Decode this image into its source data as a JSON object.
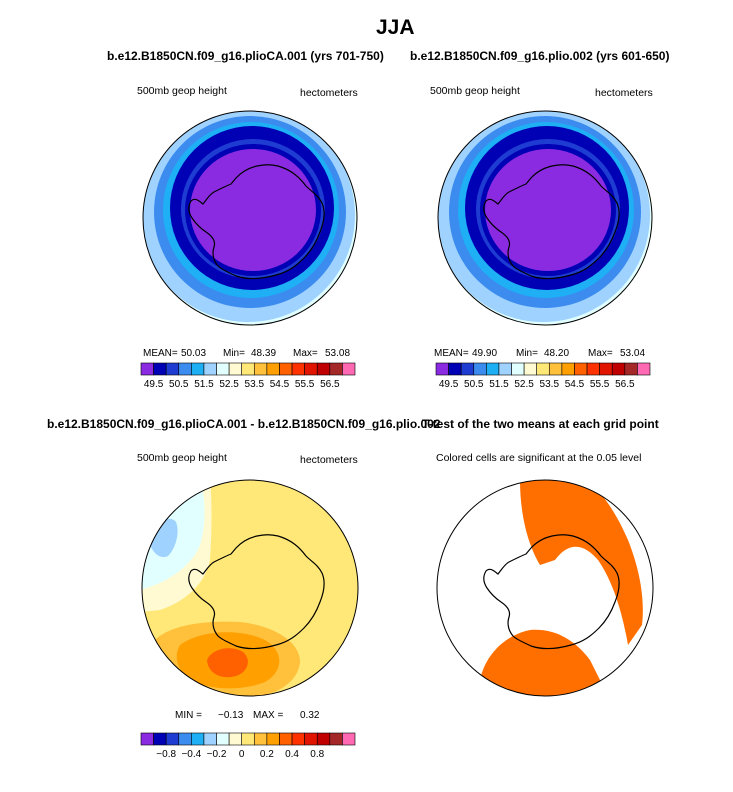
{
  "title": "JJA",
  "panels": {
    "top_left": {
      "title": "b.e12.B1850CN.f09_g16.plioCA.001 (yrs 701-750)",
      "left_label": "500mb geop height",
      "right_label": "hectometers",
      "stats": {
        "mean_label": "MEAN=",
        "mean": "50.03",
        "min_label": "Min=",
        "min": "48.39",
        "max_label": "Max=",
        "max": "53.08"
      },
      "colorbar_labels": [
        "49.5",
        "50.5",
        "51.5",
        "52.5",
        "53.5",
        "54.5",
        "55.5",
        "56.5"
      ]
    },
    "top_right": {
      "title": "b.e12.B1850CN.f09_g16.plio.002 (yrs 601-650)",
      "left_label": "500mb geop height",
      "right_label": "hectometers",
      "stats": {
        "mean_label": "MEAN=",
        "mean": "49.90",
        "min_label": "Min=",
        "min": "48.20",
        "max_label": "Max=",
        "max": "53.04"
      },
      "colorbar_labels": [
        "49.5",
        "50.5",
        "51.5",
        "52.5",
        "53.5",
        "54.5",
        "55.5",
        "56.5"
      ]
    },
    "bottom_left": {
      "title": "b.e12.B1850CN.f09_g16.plioCA.001 - b.e12.B1850CN.f09_g16.plio.002",
      "left_label": "500mb geop height",
      "right_label": "hectometers",
      "stats": {
        "min_label": "MIN =",
        "min": "−0.13",
        "max_label": "MAX =",
        "max": "0.32"
      },
      "colorbar_labels": [
        "−0.8",
        "−0.4",
        "−0.2",
        "0",
        "0.2",
        "0.4",
        "0.8"
      ]
    },
    "bottom_right": {
      "title": "T-test of the two means at each grid point",
      "subtitle": "Colored cells are significant at the 0.05 level"
    }
  },
  "colors": {
    "height_scale": [
      "#8a2be2",
      "#0000b4",
      "#1e3cd2",
      "#3c8cf0",
      "#1eaff5",
      "#a0d2ff",
      "#e1ffff",
      "#fffad2",
      "#ffe878",
      "#ffc03c",
      "#ffa000",
      "#ff6000",
      "#ff3200",
      "#e11400",
      "#c00000",
      "#a52828",
      "#ff69b4"
    ],
    "diff_scale": [
      "#8a2be2",
      "#0000b4",
      "#1e3cd2",
      "#3c8cf0",
      "#1eaff5",
      "#a0d2ff",
      "#e1ffff",
      "#fffad2",
      "#ffe878",
      "#ffc03c",
      "#ffa000",
      "#ff6000",
      "#ff3200",
      "#e11400",
      "#c00000",
      "#a52828",
      "#ff69b4"
    ],
    "significance": "#ff6f00"
  }
}
